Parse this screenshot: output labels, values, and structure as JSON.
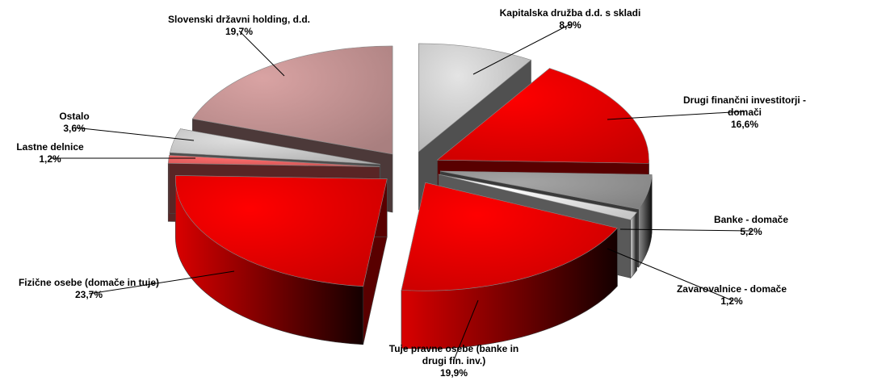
{
  "chart_data": {
    "type": "pie",
    "style": "3d-exploded",
    "title": "",
    "slices": [
      {
        "label": "Kapitalska družba d.d. s skladi",
        "value": 8.9,
        "value_text": "8,9%",
        "color": "#e4e4e4"
      },
      {
        "label": "Drugi finančni investitorji - domači",
        "value": 16.6,
        "value_text": "16,6%",
        "color": "#ff0000"
      },
      {
        "label": "Banke - domače",
        "value": 5.2,
        "value_text": "5,2%",
        "color": "#a6a6a6"
      },
      {
        "label": "Zavarovalnice - domače",
        "value": 1.2,
        "value_text": "1,2%",
        "color": "#ffffff"
      },
      {
        "label": "Tuje pravne osebe (banke in drugi fin. inv.)",
        "value": 19.9,
        "value_text": "19,9%",
        "color": "#ff0000"
      },
      {
        "label": "Fizične osebe (domače in tuje)",
        "value": 23.7,
        "value_text": "23,7%",
        "color": "#ff0000"
      },
      {
        "label": "Lastne delnice",
        "value": 1.2,
        "value_text": "1,2%",
        "color": "#ff6b6b"
      },
      {
        "label": "Ostalo",
        "value": 3.6,
        "value_text": "3,6%",
        "color": "#e0e0e0"
      },
      {
        "label": "Slovenski državni holding, d.d.",
        "value": 19.7,
        "value_text": "19,7%",
        "color": "#d9a3a3"
      }
    ]
  }
}
